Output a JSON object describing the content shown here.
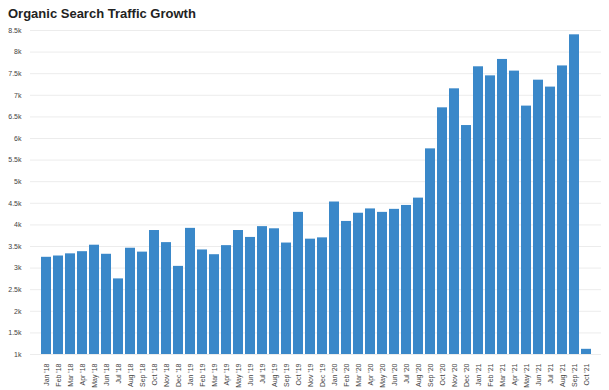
{
  "chart_data": {
    "type": "bar",
    "title": "Organic Search Traffic Growth",
    "categories": [
      "Jan '18",
      "Feb '18",
      "Mar '18",
      "Apr '18",
      "May '18",
      "Jun '18",
      "Jul '18",
      "Aug '18",
      "Sep '18",
      "Oct '18",
      "Nov '18",
      "Dec '18",
      "Jan '19",
      "Feb '19",
      "Mar '19",
      "Apr '19",
      "May '19",
      "Jun '19",
      "Jul '19",
      "Aug '19",
      "Sep '19",
      "Oct '19",
      "Nov '19",
      "Dec '19",
      "Jan '20",
      "Feb '20",
      "Mar '20",
      "Apr '20",
      "May '20",
      "Jun '20",
      "Jul '20",
      "Aug '20",
      "Sep '20",
      "Oct '20",
      "Nov '20",
      "Dec '20",
      "Jan '21",
      "Feb '21",
      "Mar '21",
      "Apr '21",
      "May '21",
      "Jun '21",
      "Jul '21",
      "Aug '21",
      "Sep '21",
      "Oct '21"
    ],
    "values": [
      3250,
      3280,
      3330,
      3380,
      3530,
      3320,
      2750,
      3460,
      3370,
      3870,
      3590,
      3040,
      3920,
      3420,
      3310,
      3520,
      3870,
      3710,
      3960,
      3910,
      3580,
      4290,
      3670,
      3700,
      4530,
      4080,
      4270,
      4370,
      4290,
      4360,
      4450,
      4620,
      5760,
      6710,
      7150,
      6300,
      7660,
      7450,
      7830,
      7560,
      6750,
      7350,
      7190,
      7680,
      8400,
      1120
    ],
    "color": "#3a88c9",
    "ylim": [
      1000,
      8500
    ],
    "yticks": [
      {
        "value": 1000,
        "label": "1k"
      },
      {
        "value": 1500,
        "label": "1.5k"
      },
      {
        "value": 2000,
        "label": "2k"
      },
      {
        "value": 2500,
        "label": "2.5k"
      },
      {
        "value": 3000,
        "label": "3k"
      },
      {
        "value": 3500,
        "label": "3.5k"
      },
      {
        "value": 4000,
        "label": "4k"
      },
      {
        "value": 4500,
        "label": "4.5k"
      },
      {
        "value": 5000,
        "label": "5k"
      },
      {
        "value": 5500,
        "label": "5.5k"
      },
      {
        "value": 6000,
        "label": "6k"
      },
      {
        "value": 6500,
        "label": "6.5k"
      },
      {
        "value": 7000,
        "label": "7k"
      },
      {
        "value": 7500,
        "label": "7.5k"
      },
      {
        "value": 8000,
        "label": "8k"
      },
      {
        "value": 8500,
        "label": "8.5k"
      }
    ],
    "grid": true
  }
}
